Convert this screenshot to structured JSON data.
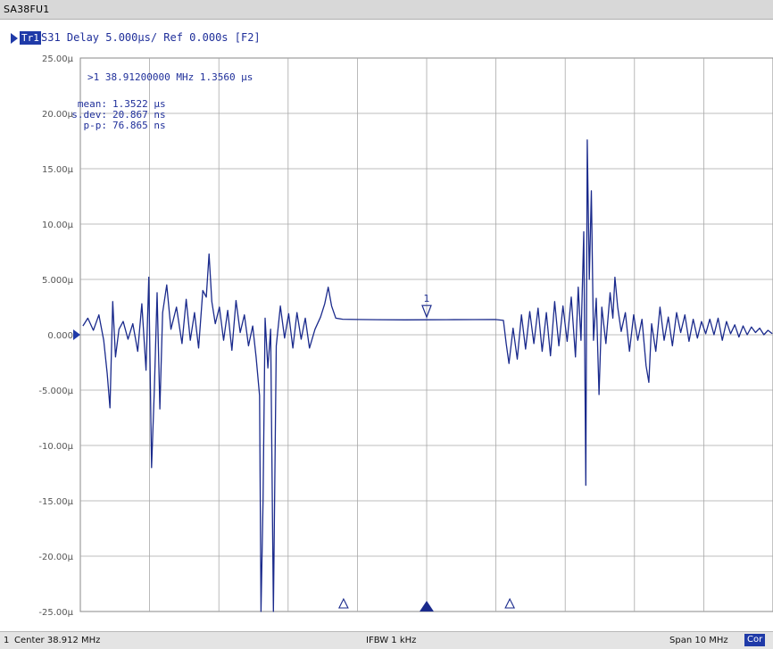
{
  "window": {
    "title": "SA38FU1"
  },
  "trace": {
    "badge": "Tr1",
    "header": "S31 Delay 5.000µs/ Ref 0.000s [F2]"
  },
  "marker_readout": {
    "line": ">1  38.91200000 MHz  1.3560 µs",
    "stats": [
      {
        "label": "mean:",
        "value": "1.3522 µs"
      },
      {
        "label": "s.dev:",
        "value": "20.867 ns"
      },
      {
        "label": "p-p:",
        "value": "76.865 ns"
      }
    ]
  },
  "status": {
    "channel": "1",
    "center": "Center 38.912 MHz",
    "ifbw": "IFBW 1 kHz",
    "span": "Span 10 MHz",
    "cor": "Cor"
  },
  "colors": {
    "trace": "#1a2a8c",
    "grid": "#a8a8a8",
    "accent": "#1f3aa8"
  },
  "chart_data": {
    "type": "line",
    "title": "S31 Delay 5.000µs/ Ref 0.000s [F2]",
    "xlabel": "",
    "ylabel": "",
    "x_unit": "MHz",
    "xlim": [
      33.912,
      43.912
    ],
    "ylim": [
      -25,
      25
    ],
    "y_tick_labels": [
      "25.00µ",
      "20.00µ",
      "15.00µ",
      "10.00µ",
      "5.000µ",
      "0.000",
      "-5.000µ",
      "-10.00µ",
      "-15.00µ",
      "-20.00µ",
      "-25.00µ"
    ],
    "y_tick_values": [
      25,
      20,
      15,
      10,
      5,
      0,
      -5,
      -10,
      -15,
      -20,
      -25
    ],
    "grid": true,
    "marker": {
      "label": "1",
      "x": 38.912,
      "y": 1.356
    },
    "series": [
      {
        "values": [
          [
            33.95,
            0.8
          ],
          [
            34.02,
            1.5
          ],
          [
            34.1,
            0.4
          ],
          [
            34.18,
            1.8
          ],
          [
            34.25,
            -0.5
          ],
          [
            34.3,
            -3.5
          ],
          [
            34.34,
            -6.6
          ],
          [
            34.38,
            3.0
          ],
          [
            34.42,
            -2.0
          ],
          [
            34.47,
            0.5
          ],
          [
            34.53,
            1.2
          ],
          [
            34.6,
            -0.4
          ],
          [
            34.67,
            1.0
          ],
          [
            34.74,
            -1.5
          ],
          [
            34.8,
            2.8
          ],
          [
            34.86,
            -3.2
          ],
          [
            34.9,
            5.2
          ],
          [
            34.94,
            -12.0
          ],
          [
            34.98,
            -5.0
          ],
          [
            35.02,
            3.8
          ],
          [
            35.06,
            -6.7
          ],
          [
            35.1,
            2.0
          ],
          [
            35.16,
            4.5
          ],
          [
            35.22,
            0.5
          ],
          [
            35.3,
            2.5
          ],
          [
            35.38,
            -0.8
          ],
          [
            35.44,
            3.2
          ],
          [
            35.5,
            -0.5
          ],
          [
            35.56,
            2.0
          ],
          [
            35.62,
            -1.2
          ],
          [
            35.68,
            4.0
          ],
          [
            35.73,
            3.4
          ],
          [
            35.77,
            7.3
          ],
          [
            35.81,
            3.0
          ],
          [
            35.86,
            1.0
          ],
          [
            35.92,
            2.5
          ],
          [
            35.98,
            -0.5
          ],
          [
            36.04,
            2.2
          ],
          [
            36.1,
            -1.4
          ],
          [
            36.16,
            3.1
          ],
          [
            36.22,
            0.2
          ],
          [
            36.28,
            1.8
          ],
          [
            36.34,
            -1.0
          ],
          [
            36.4,
            0.8
          ],
          [
            36.45,
            -2.0
          ],
          [
            36.5,
            -5.5
          ],
          [
            36.52,
            -25.0
          ],
          [
            36.55,
            -15.0
          ],
          [
            36.58,
            1.5
          ],
          [
            36.62,
            -3.0
          ],
          [
            36.66,
            0.5
          ],
          [
            36.7,
            -25.0
          ],
          [
            36.74,
            -1.0
          ],
          [
            36.8,
            2.6
          ],
          [
            36.86,
            -0.3
          ],
          [
            36.92,
            1.9
          ],
          [
            36.98,
            -1.2
          ],
          [
            37.04,
            2.0
          ],
          [
            37.1,
            -0.4
          ],
          [
            37.16,
            1.5
          ],
          [
            37.22,
            -1.2
          ],
          [
            37.3,
            0.5
          ],
          [
            37.38,
            1.6
          ],
          [
            37.44,
            2.8
          ],
          [
            37.49,
            4.3
          ],
          [
            37.54,
            2.6
          ],
          [
            37.6,
            1.5
          ],
          [
            37.7,
            1.4
          ],
          [
            37.9,
            1.38
          ],
          [
            38.2,
            1.36
          ],
          [
            38.6,
            1.35
          ],
          [
            38.912,
            1.356
          ],
          [
            39.2,
            1.36
          ],
          [
            39.6,
            1.37
          ],
          [
            39.9,
            1.38
          ],
          [
            40.02,
            1.3
          ],
          [
            40.06,
            -0.8
          ],
          [
            40.1,
            -2.6
          ],
          [
            40.16,
            0.6
          ],
          [
            40.22,
            -2.2
          ],
          [
            40.28,
            1.8
          ],
          [
            40.34,
            -1.3
          ],
          [
            40.4,
            2.1
          ],
          [
            40.46,
            -0.8
          ],
          [
            40.52,
            2.4
          ],
          [
            40.58,
            -1.5
          ],
          [
            40.64,
            2.0
          ],
          [
            40.7,
            -1.9
          ],
          [
            40.76,
            3.0
          ],
          [
            40.82,
            -1.0
          ],
          [
            40.88,
            2.6
          ],
          [
            40.94,
            -0.6
          ],
          [
            41.0,
            3.4
          ],
          [
            41.06,
            -2.0
          ],
          [
            41.1,
            4.3
          ],
          [
            41.14,
            -0.5
          ],
          [
            41.18,
            9.3
          ],
          [
            41.21,
            -13.6
          ],
          [
            41.23,
            17.6
          ],
          [
            41.26,
            5.0
          ],
          [
            41.29,
            13.0
          ],
          [
            41.32,
            -0.5
          ],
          [
            41.36,
            3.3
          ],
          [
            41.4,
            -5.4
          ],
          [
            41.44,
            2.5
          ],
          [
            41.5,
            -0.8
          ],
          [
            41.56,
            3.8
          ],
          [
            41.6,
            1.5
          ],
          [
            41.63,
            5.2
          ],
          [
            41.67,
            2.5
          ],
          [
            41.72,
            0.3
          ],
          [
            41.78,
            2.0
          ],
          [
            41.84,
            -1.5
          ],
          [
            41.9,
            1.8
          ],
          [
            41.96,
            -0.5
          ],
          [
            42.02,
            1.4
          ],
          [
            42.08,
            -2.8
          ],
          [
            42.12,
            -4.3
          ],
          [
            42.16,
            1.0
          ],
          [
            42.22,
            -1.5
          ],
          [
            42.28,
            2.5
          ],
          [
            42.34,
            -0.5
          ],
          [
            42.4,
            1.6
          ],
          [
            42.46,
            -1.0
          ],
          [
            42.52,
            2.0
          ],
          [
            42.58,
            0.2
          ],
          [
            42.64,
            1.8
          ],
          [
            42.7,
            -0.6
          ],
          [
            42.76,
            1.4
          ],
          [
            42.82,
            -0.3
          ],
          [
            42.88,
            1.2
          ],
          [
            42.94,
            0.1
          ],
          [
            43.0,
            1.4
          ],
          [
            43.06,
            0.0
          ],
          [
            43.12,
            1.5
          ],
          [
            43.18,
            -0.5
          ],
          [
            43.24,
            1.2
          ],
          [
            43.3,
            0.1
          ],
          [
            43.36,
            0.9
          ],
          [
            43.42,
            -0.2
          ],
          [
            43.48,
            0.8
          ],
          [
            43.54,
            0.0
          ],
          [
            43.6,
            0.7
          ],
          [
            43.66,
            0.2
          ],
          [
            43.72,
            0.6
          ],
          [
            43.78,
            0.0
          ],
          [
            43.84,
            0.4
          ],
          [
            43.9,
            0.1
          ]
        ]
      }
    ]
  }
}
